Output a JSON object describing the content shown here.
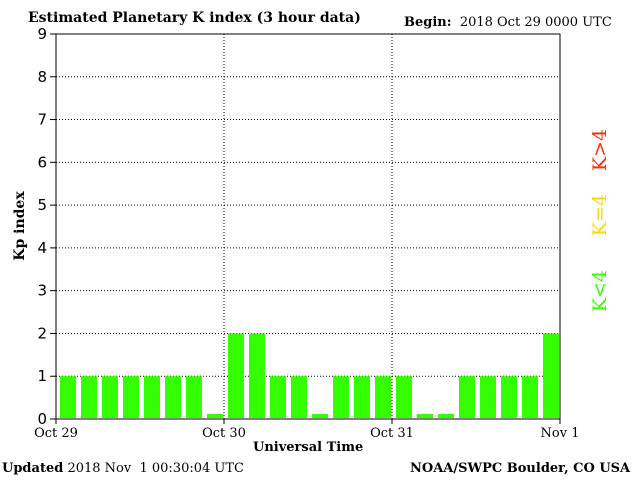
{
  "header": {
    "title": "Estimated Planetary K index (3 hour data)",
    "begin_label": "Begin:",
    "begin_value": "2018 Oct 29 0000 UTC"
  },
  "footer": {
    "updated_label": "Updated",
    "updated_value": "2018 Nov  1 00:30:04 UTC",
    "credit": "NOAA/SWPC Boulder, CO USA"
  },
  "legend": {
    "high": {
      "label": "K>4",
      "color": "#ff2a00"
    },
    "mid": {
      "label": "K=4",
      "color": "#ffd700"
    },
    "low": {
      "label": "K<4",
      "color": "#33ff00"
    }
  },
  "chart_data": {
    "type": "bar",
    "title": "Estimated Planetary K index (3 hour data)",
    "xlabel": "Universal Time",
    "ylabel": "Kp index",
    "ylim": [
      0,
      9
    ],
    "yticks": [
      0,
      1,
      2,
      3,
      4,
      5,
      6,
      7,
      8,
      9
    ],
    "xtick_labels": [
      "Oct 29",
      "Oct 30",
      "Oct 31",
      "Nov 1"
    ],
    "grid": true,
    "bar_color": "#33ff00",
    "values": [
      1,
      1,
      1,
      1,
      1,
      1,
      1,
      0,
      2,
      2,
      1,
      1,
      0,
      1,
      1,
      1,
      1,
      0,
      0,
      1,
      1,
      1,
      1,
      2
    ]
  }
}
